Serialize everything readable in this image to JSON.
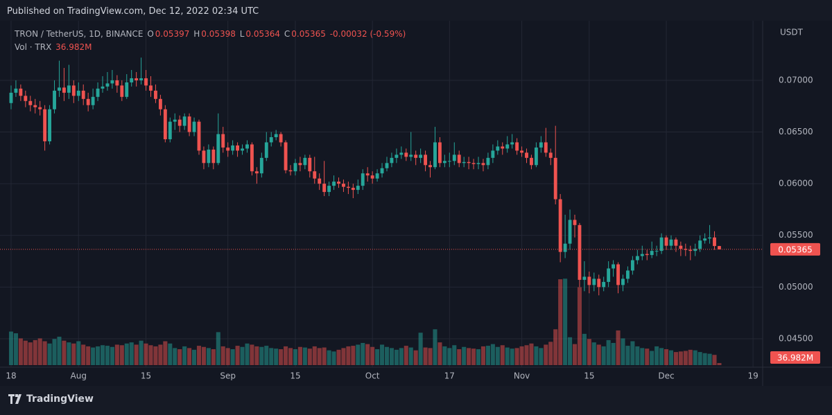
{
  "header": {
    "published": "Published on TradingView.com, Dec 12, 2022 02:34 UTC"
  },
  "chart_data": {
    "type": "candlestick",
    "symbol": "TRON / TetherUS, 1D, BINANCE",
    "ohlc_letters": {
      "open": "O",
      "high": "H",
      "low": "L",
      "close": "C"
    },
    "change": "-0.00032 (-0.59%)",
    "volume_title": "Vol · TRX",
    "volume_label": "36.982M",
    "y_unit": "USDT",
    "up_color": "#26a69a",
    "down_color": "#ef5350",
    "grid": true,
    "open": [
      0.0678,
      0.0688,
      0.0692,
      0.0685,
      0.068,
      0.0676,
      0.0674,
      0.0672,
      0.0641,
      0.0672,
      0.069,
      0.0693,
      0.0688,
      0.0695,
      0.0685,
      0.069,
      0.0682,
      0.0676,
      0.0684,
      0.0692,
      0.0694,
      0.0697,
      0.07,
      0.0695,
      0.0684,
      0.0698,
      0.0702,
      0.07,
      0.0702,
      0.0695,
      0.069,
      0.0682,
      0.0672,
      0.0643,
      0.066,
      0.0662,
      0.0656,
      0.0665,
      0.065,
      0.066,
      0.0632,
      0.062,
      0.0633,
      0.062,
      0.0648,
      0.0635,
      0.0632,
      0.0637,
      0.0632,
      0.0634,
      0.0638,
      0.0612,
      0.061,
      0.0625,
      0.064,
      0.0645,
      0.0648,
      0.064,
      0.0613,
      0.0612,
      0.062,
      0.0618,
      0.0625,
      0.0612,
      0.0605,
      0.06,
      0.0592,
      0.0598,
      0.0602,
      0.06,
      0.0597,
      0.0596,
      0.0594,
      0.0598,
      0.061,
      0.0608,
      0.0605,
      0.061,
      0.0615,
      0.062,
      0.0625,
      0.0628,
      0.063,
      0.0626,
      0.0628,
      0.0625,
      0.0628,
      0.0618,
      0.0616,
      0.064,
      0.062,
      0.0622,
      0.0622,
      0.0628,
      0.062,
      0.0621,
      0.062,
      0.0619,
      0.062,
      0.0618,
      0.0625,
      0.0632,
      0.0636,
      0.0634,
      0.0638,
      0.064,
      0.0632,
      0.063,
      0.0625,
      0.0618,
      0.0635,
      0.064,
      0.063,
      0.0625,
      0.0585,
      0.0534,
      0.0542,
      0.0565,
      0.056,
      0.0507,
      0.051,
      0.0502,
      0.0508,
      0.05,
      0.0505,
      0.0518,
      0.0522,
      0.0502,
      0.0508,
      0.0516,
      0.0526,
      0.053,
      0.0532,
      0.0531,
      0.0535,
      0.0535,
      0.0548,
      0.054,
      0.0546,
      0.054,
      0.0537,
      0.0536,
      0.0535,
      0.0537,
      0.0545,
      0.0547,
      0.0548,
      0.05397
    ],
    "high": [
      0.0695,
      0.07,
      0.0696,
      0.069,
      0.0685,
      0.0682,
      0.068,
      0.0676,
      0.0676,
      0.07,
      0.0719,
      0.0712,
      0.0715,
      0.07,
      0.0698,
      0.0696,
      0.0688,
      0.0692,
      0.0698,
      0.0704,
      0.0708,
      0.071,
      0.0705,
      0.07,
      0.0706,
      0.071,
      0.0708,
      0.0722,
      0.071,
      0.0704,
      0.0696,
      0.0686,
      0.0676,
      0.0664,
      0.0668,
      0.0666,
      0.0668,
      0.0668,
      0.0664,
      0.0662,
      0.0636,
      0.0638,
      0.0636,
      0.0668,
      0.0655,
      0.064,
      0.0642,
      0.064,
      0.0638,
      0.0642,
      0.064,
      0.0616,
      0.063,
      0.065,
      0.065,
      0.0652,
      0.065,
      0.0642,
      0.0618,
      0.0624,
      0.0626,
      0.0628,
      0.0628,
      0.0626,
      0.061,
      0.0622,
      0.0602,
      0.0608,
      0.0606,
      0.0604,
      0.0602,
      0.06,
      0.0604,
      0.0614,
      0.0616,
      0.0612,
      0.0614,
      0.062,
      0.0626,
      0.063,
      0.0634,
      0.0636,
      0.0634,
      0.065,
      0.0632,
      0.0634,
      0.0632,
      0.0622,
      0.0655,
      0.0645,
      0.0628,
      0.063,
      0.064,
      0.0632,
      0.0626,
      0.0626,
      0.0624,
      0.0626,
      0.0624,
      0.063,
      0.0638,
      0.0642,
      0.064,
      0.0646,
      0.0648,
      0.0644,
      0.0636,
      0.0634,
      0.0628,
      0.064,
      0.0646,
      0.0654,
      0.0634,
      0.0656,
      0.059,
      0.057,
      0.0575,
      0.057,
      0.0562,
      0.0525,
      0.0515,
      0.0514,
      0.0512,
      0.051,
      0.0525,
      0.0526,
      0.0524,
      0.0512,
      0.052,
      0.053,
      0.0536,
      0.054,
      0.0536,
      0.0544,
      0.054,
      0.0552,
      0.055,
      0.055,
      0.0548,
      0.0544,
      0.0542,
      0.054,
      0.0542,
      0.055,
      0.0552,
      0.056,
      0.0554,
      0.05398
    ],
    "low": [
      0.0672,
      0.0684,
      0.068,
      0.0674,
      0.067,
      0.0668,
      0.0666,
      0.0632,
      0.0638,
      0.0668,
      0.0684,
      0.068,
      0.0682,
      0.0678,
      0.068,
      0.0676,
      0.067,
      0.0672,
      0.068,
      0.0688,
      0.069,
      0.0692,
      0.0688,
      0.068,
      0.0682,
      0.0694,
      0.0694,
      0.0696,
      0.069,
      0.0684,
      0.0678,
      0.0666,
      0.064,
      0.064,
      0.0652,
      0.065,
      0.0652,
      0.0646,
      0.0646,
      0.0628,
      0.0614,
      0.0616,
      0.0614,
      0.0618,
      0.063,
      0.0626,
      0.0628,
      0.0626,
      0.0628,
      0.063,
      0.0608,
      0.06,
      0.0606,
      0.0622,
      0.0636,
      0.0642,
      0.0636,
      0.061,
      0.0608,
      0.0608,
      0.0612,
      0.0614,
      0.0606,
      0.06,
      0.0594,
      0.0588,
      0.0588,
      0.0594,
      0.0596,
      0.0592,
      0.059,
      0.0586,
      0.059,
      0.0594,
      0.0602,
      0.06,
      0.0602,
      0.0606,
      0.0612,
      0.0616,
      0.062,
      0.0624,
      0.0622,
      0.0622,
      0.0618,
      0.062,
      0.0612,
      0.0606,
      0.0614,
      0.0616,
      0.0616,
      0.0616,
      0.0618,
      0.0616,
      0.0616,
      0.0614,
      0.0614,
      0.0614,
      0.0612,
      0.0614,
      0.062,
      0.0628,
      0.0628,
      0.063,
      0.0634,
      0.0628,
      0.0626,
      0.062,
      0.0614,
      0.0616,
      0.063,
      0.0626,
      0.0618,
      0.058,
      0.0524,
      0.0528,
      0.0536,
      0.0548,
      0.05,
      0.0496,
      0.0494,
      0.0496,
      0.0492,
      0.0496,
      0.05,
      0.051,
      0.0494,
      0.0496,
      0.0504,
      0.0512,
      0.0522,
      0.0526,
      0.0526,
      0.0528,
      0.053,
      0.0532,
      0.0536,
      0.0536,
      0.0534,
      0.053,
      0.053,
      0.0526,
      0.053,
      0.0534,
      0.0542,
      0.0542,
      0.0536,
      0.05364
    ],
    "close": [
      0.0688,
      0.0692,
      0.0685,
      0.068,
      0.0676,
      0.0674,
      0.0672,
      0.0641,
      0.0672,
      0.069,
      0.0693,
      0.0688,
      0.0695,
      0.0685,
      0.069,
      0.0682,
      0.0676,
      0.0684,
      0.0692,
      0.0694,
      0.0697,
      0.07,
      0.0695,
      0.0684,
      0.0698,
      0.0702,
      0.07,
      0.0702,
      0.0695,
      0.069,
      0.0682,
      0.0672,
      0.0643,
      0.066,
      0.0662,
      0.0656,
      0.0665,
      0.065,
      0.066,
      0.0632,
      0.062,
      0.0633,
      0.062,
      0.0648,
      0.0635,
      0.0632,
      0.0637,
      0.0632,
      0.0634,
      0.0638,
      0.0612,
      0.061,
      0.0625,
      0.064,
      0.0645,
      0.0648,
      0.064,
      0.0613,
      0.0612,
      0.062,
      0.0618,
      0.0625,
      0.0612,
      0.0605,
      0.06,
      0.0592,
      0.0598,
      0.0602,
      0.06,
      0.0597,
      0.0596,
      0.0594,
      0.0598,
      0.061,
      0.0608,
      0.0605,
      0.061,
      0.0615,
      0.062,
      0.0625,
      0.0628,
      0.063,
      0.0626,
      0.0628,
      0.0625,
      0.0628,
      0.0618,
      0.0616,
      0.064,
      0.062,
      0.0622,
      0.0622,
      0.0628,
      0.062,
      0.0621,
      0.062,
      0.0619,
      0.062,
      0.0618,
      0.0625,
      0.0632,
      0.0636,
      0.0634,
      0.0638,
      0.064,
      0.0632,
      0.063,
      0.0625,
      0.0618,
      0.0635,
      0.064,
      0.063,
      0.0625,
      0.0585,
      0.0534,
      0.0542,
      0.0565,
      0.056,
      0.0507,
      0.051,
      0.0502,
      0.0508,
      0.05,
      0.0505,
      0.0518,
      0.0522,
      0.0502,
      0.0508,
      0.0516,
      0.0526,
      0.053,
      0.0532,
      0.0531,
      0.0535,
      0.0535,
      0.0548,
      0.054,
      0.0546,
      0.054,
      0.0537,
      0.0536,
      0.0535,
      0.0537,
      0.0545,
      0.0547,
      0.0548,
      0.05397,
      0.05365
    ],
    "volume": [
      590,
      560,
      470,
      430,
      400,
      440,
      470,
      420,
      380,
      460,
      500,
      430,
      400,
      380,
      420,
      360,
      330,
      310,
      330,
      350,
      340,
      320,
      360,
      350,
      380,
      400,
      360,
      430,
      380,
      350,
      330,
      360,
      420,
      380,
      300,
      280,
      330,
      300,
      270,
      340,
      320,
      300,
      280,
      580,
      330,
      300,
      280,
      340,
      320,
      380,
      360,
      330,
      320,
      340,
      300,
      290,
      280,
      330,
      300,
      280,
      320,
      310,
      290,
      330,
      300,
      310,
      260,
      240,
      270,
      300,
      330,
      340,
      360,
      390,
      370,
      320,
      280,
      360,
      320,
      300,
      270,
      300,
      340,
      310,
      260,
      570,
      310,
      300,
      630,
      400,
      330,
      300,
      350,
      280,
      320,
      300,
      290,
      280,
      330,
      340,
      370,
      320,
      350,
      310,
      290,
      300,
      330,
      350,
      380,
      330,
      300,
      360,
      410,
      630,
      1510,
      1520,
      490,
      370,
      1370,
      550,
      460,
      400,
      360,
      330,
      440,
      390,
      610,
      470,
      340,
      420,
      330,
      300,
      290,
      250,
      330,
      300,
      280,
      260,
      230,
      240,
      250,
      270,
      260,
      230,
      210,
      200,
      180,
      36.982
    ],
    "xlim": [
      -2.3,
      156.0
    ],
    "xticks": [
      {
        "value": 0,
        "label": "18"
      },
      {
        "value": 14,
        "label": "Aug"
      },
      {
        "value": 28,
        "label": "15"
      },
      {
        "value": 45,
        "label": "Sep"
      },
      {
        "value": 59,
        "label": "15"
      },
      {
        "value": 75,
        "label": "Oct"
      },
      {
        "value": 91,
        "label": "17"
      },
      {
        "value": 106,
        "label": "Nov"
      },
      {
        "value": 120,
        "label": "15"
      },
      {
        "value": 136,
        "label": "Dec"
      },
      {
        "value": 154,
        "label": "19"
      }
    ],
    "ylim": [
      0.04245,
      0.07576
    ],
    "yticks": [
      {
        "value": 0.045,
        "label": "0.04500"
      },
      {
        "value": 0.05,
        "label": "0.05000"
      },
      {
        "value": 0.055,
        "label": "0.05500"
      },
      {
        "value": 0.06,
        "label": "0.06000"
      },
      {
        "value": 0.065,
        "label": "0.06500"
      },
      {
        "value": 0.07,
        "label": "0.07000"
      }
    ],
    "volume_ylim": [
      0,
      2400
    ]
  },
  "footer": {
    "brand": "TradingView"
  }
}
